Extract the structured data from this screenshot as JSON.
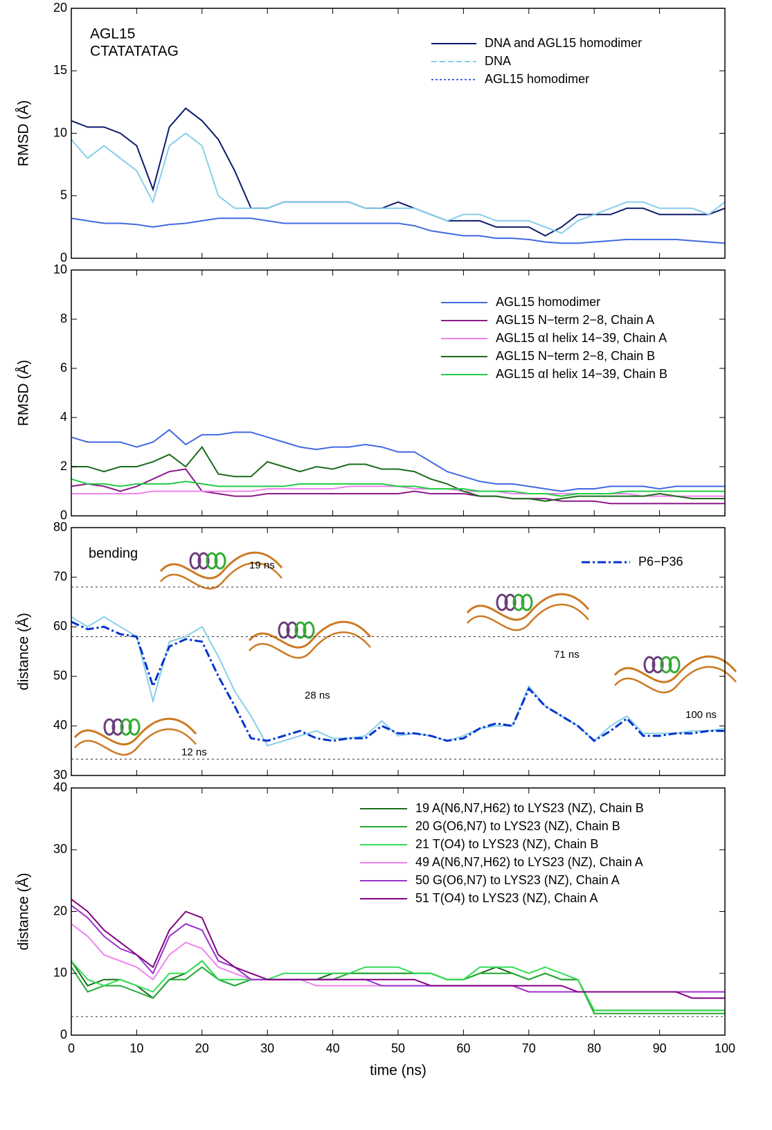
{
  "chart_data": [
    {
      "type": "line",
      "y_label": "RMSD (Å)",
      "annotations": [
        "AGL15",
        "CTATATATAG"
      ],
      "x": [
        0,
        2.5,
        5,
        7.5,
        10,
        12.5,
        15,
        17.5,
        20,
        22.5,
        25,
        27.5,
        30,
        32.5,
        35,
        37.5,
        40,
        42.5,
        45,
        47.5,
        50,
        52.5,
        55,
        57.5,
        60,
        62.5,
        65,
        67.5,
        70,
        72.5,
        75,
        77.5,
        80,
        82.5,
        85,
        87.5,
        90,
        92.5,
        95,
        97.5,
        100
      ],
      "xlim": [
        0,
        100
      ],
      "xticks": [
        0,
        10,
        20,
        30,
        40,
        50,
        60,
        70,
        80,
        90,
        100
      ],
      "show_xtick_labels": false,
      "ylim": [
        0,
        20
      ],
      "yticks": [
        0,
        5,
        10,
        15,
        20
      ],
      "legend": "upper right",
      "series": [
        {
          "name": "DNA and AGL15 homodimer",
          "color": "#0d1a6b",
          "values": [
            11,
            10.5,
            10.5,
            10,
            9,
            5.5,
            10.5,
            12,
            11,
            9.5,
            7,
            4,
            4,
            4.5,
            4.5,
            4.5,
            4.5,
            4.5,
            4,
            4,
            4.5,
            4,
            3.5,
            3,
            3,
            3,
            2.5,
            2.5,
            2.5,
            1.8,
            2.5,
            3.5,
            3.5,
            3.5,
            4,
            4,
            3.5,
            3.5,
            3.5,
            3.5,
            4
          ]
        },
        {
          "name": "DNA",
          "color": "#87ceeb",
          "values": [
            9.5,
            8,
            9,
            8,
            7,
            4.5,
            9,
            10,
            9,
            5,
            4,
            4,
            4,
            4.5,
            4.5,
            4.5,
            4.5,
            4.5,
            4,
            4,
            4,
            4,
            3.5,
            3,
            3.5,
            3.5,
            3,
            3,
            3,
            2.5,
            2,
            3,
            3.5,
            4,
            4.5,
            4.5,
            4,
            4,
            4,
            3.5,
            4.5
          ]
        },
        {
          "name": "AGL15 homodimer",
          "color": "#4169e1",
          "values": [
            3.2,
            3,
            2.8,
            2.8,
            2.7,
            2.5,
            2.7,
            2.8,
            3,
            3.2,
            3.2,
            3.2,
            3,
            2.8,
            2.8,
            2.8,
            2.8,
            2.8,
            2.8,
            2.8,
            2.8,
            2.6,
            2.2,
            2,
            1.8,
            1.8,
            1.6,
            1.6,
            1.5,
            1.3,
            1.2,
            1.2,
            1.3,
            1.4,
            1.5,
            1.5,
            1.5,
            1.5,
            1.4,
            1.3,
            1.2
          ]
        }
      ]
    },
    {
      "type": "line",
      "y_label": "RMSD (Å)",
      "x": [
        0,
        2.5,
        5,
        7.5,
        10,
        12.5,
        15,
        17.5,
        20,
        22.5,
        25,
        27.5,
        30,
        32.5,
        35,
        37.5,
        40,
        42.5,
        45,
        47.5,
        50,
        52.5,
        55,
        57.5,
        60,
        62.5,
        65,
        67.5,
        70,
        72.5,
        75,
        77.5,
        80,
        82.5,
        85,
        87.5,
        90,
        92.5,
        95,
        97.5,
        100
      ],
      "xlim": [
        0,
        100
      ],
      "xticks": [
        0,
        10,
        20,
        30,
        40,
        50,
        60,
        70,
        80,
        90,
        100
      ],
      "show_xtick_labels": false,
      "ylim": [
        0,
        10
      ],
      "yticks": [
        0,
        2,
        4,
        6,
        8,
        10
      ],
      "legend": "upper right",
      "series": [
        {
          "name": "AGL15 homodimer",
          "color": "#4169e1",
          "values": [
            3.2,
            3,
            3,
            3,
            2.8,
            3,
            3.5,
            2.9,
            3.3,
            3.3,
            3.4,
            3.4,
            3.2,
            3,
            2.8,
            2.7,
            2.8,
            2.8,
            2.9,
            2.8,
            2.6,
            2.6,
            2.2,
            1.8,
            1.6,
            1.4,
            1.3,
            1.3,
            1.2,
            1.1,
            1,
            1.1,
            1.1,
            1.2,
            1.2,
            1.2,
            1.1,
            1.2,
            1.2,
            1.2,
            1.2
          ]
        },
        {
          "name": "AGL15 N−term 2−8, Chain A",
          "color": "#8b1a89",
          "values": [
            1.2,
            1.3,
            1.2,
            1,
            1.2,
            1.5,
            1.8,
            1.9,
            1,
            0.9,
            0.8,
            0.8,
            0.9,
            0.9,
            0.9,
            0.9,
            0.9,
            0.9,
            0.9,
            0.9,
            0.9,
            1,
            0.9,
            0.9,
            0.9,
            0.8,
            0.8,
            0.7,
            0.7,
            0.7,
            0.6,
            0.6,
            0.6,
            0.5,
            0.5,
            0.5,
            0.5,
            0.5,
            0.5,
            0.5,
            0.5
          ]
        },
        {
          "name": "AGL15 αI helix 14−39, Chain A",
          "color": "#ee82ee",
          "values": [
            0.9,
            0.9,
            0.9,
            0.9,
            0.9,
            1,
            1,
            1,
            1,
            1,
            1,
            1,
            1.1,
            1.1,
            1.1,
            1.1,
            1.1,
            1.2,
            1.2,
            1.2,
            1.2,
            1.1,
            1.1,
            1.1,
            1,
            1,
            1,
            0.9,
            0.9,
            0.9,
            0.9,
            0.9,
            0.9,
            0.9,
            0.9,
            0.8,
            0.8,
            0.8,
            0.8,
            0.8,
            0.8
          ]
        },
        {
          "name": "AGL15 N−term 2−8, Chain B",
          "color": "#1a6b1a",
          "values": [
            2,
            2,
            1.8,
            2,
            2,
            2.2,
            2.5,
            2,
            2.8,
            1.7,
            1.6,
            1.6,
            2.2,
            2,
            1.8,
            2,
            1.9,
            2.1,
            2.1,
            1.9,
            1.9,
            1.8,
            1.5,
            1.3,
            1,
            0.8,
            0.8,
            0.7,
            0.7,
            0.6,
            0.7,
            0.8,
            0.8,
            0.8,
            0.8,
            0.8,
            0.9,
            0.8,
            0.7,
            0.7,
            0.7
          ]
        },
        {
          "name": "AGL15 αI helix 14−39, Chain B",
          "color": "#22cc44",
          "values": [
            1.5,
            1.3,
            1.3,
            1.2,
            1.3,
            1.3,
            1.3,
            1.4,
            1.3,
            1.2,
            1.2,
            1.2,
            1.2,
            1.2,
            1.3,
            1.3,
            1.3,
            1.3,
            1.3,
            1.3,
            1.2,
            1.2,
            1.1,
            1.1,
            1.1,
            1,
            1,
            1,
            0.9,
            0.9,
            0.8,
            0.9,
            0.9,
            0.9,
            1,
            1,
            1,
            1,
            1,
            1,
            1
          ]
        }
      ]
    },
    {
      "type": "line",
      "y_label": "distance (Å)",
      "annotations": [
        "bending",
        "19 ns",
        "28 ns",
        "71 ns",
        "100 ns",
        "12 ns"
      ],
      "x": [
        0,
        2.5,
        5,
        7.5,
        10,
        12.5,
        15,
        17.5,
        20,
        22.5,
        25,
        27.5,
        30,
        32.5,
        35,
        37.5,
        40,
        42.5,
        45,
        47.5,
        50,
        52.5,
        55,
        57.5,
        60,
        62.5,
        65,
        67.5,
        70,
        72.5,
        75,
        77.5,
        80,
        82.5,
        85,
        87.5,
        90,
        92.5,
        95,
        97.5,
        100
      ],
      "xlim": [
        0,
        100
      ],
      "xticks": [
        0,
        10,
        20,
        30,
        40,
        50,
        60,
        70,
        80,
        90,
        100
      ],
      "show_xtick_labels": false,
      "ylim": [
        30,
        80
      ],
      "yticks": [
        30,
        40,
        50,
        60,
        70,
        80
      ],
      "hlines": [
        68,
        58,
        33.3
      ],
      "legend": "upper right",
      "series": [
        {
          "color": "#87ceeb",
          "values": [
            62,
            60,
            62,
            60,
            58,
            45,
            57,
            58,
            60,
            54,
            47,
            42,
            36,
            37,
            38,
            39,
            37.5,
            37.5,
            38,
            41,
            38,
            38.5,
            38,
            37,
            38,
            39.5,
            40,
            40,
            48,
            44,
            42,
            40,
            37,
            40,
            42,
            38.5,
            38.5,
            38.5,
            39,
            39,
            39.5
          ]
        },
        {
          "name": "P6−P36",
          "color": "#0033cc",
          "values": [
            61,
            59.5,
            60,
            58.5,
            58,
            48,
            56,
            57.5,
            57,
            50,
            44,
            37.5,
            37,
            38,
            39,
            37.5,
            37,
            37.5,
            37.5,
            40,
            38.5,
            38.5,
            38,
            37,
            37.5,
            39.5,
            40.5,
            40,
            47.5,
            44,
            42,
            40,
            37,
            39,
            41.5,
            38,
            38,
            38.5,
            38.5,
            39,
            39
          ]
        }
      ]
    },
    {
      "type": "line",
      "y_label": "distance (Å)",
      "x_label": "time (ns)",
      "x": [
        0,
        2.5,
        5,
        7.5,
        10,
        12.5,
        15,
        17.5,
        20,
        22.5,
        25,
        27.5,
        30,
        32.5,
        35,
        37.5,
        40,
        42.5,
        45,
        47.5,
        50,
        52.5,
        55,
        57.5,
        60,
        62.5,
        65,
        67.5,
        70,
        72.5,
        75,
        77.5,
        80,
        82.5,
        85,
        87.5,
        90,
        92.5,
        95,
        97.5,
        100
      ],
      "xlim": [
        0,
        100
      ],
      "xticks": [
        0,
        10,
        20,
        30,
        40,
        50,
        60,
        70,
        80,
        90,
        100
      ],
      "show_xtick_labels": true,
      "ylim": [
        0,
        40
      ],
      "yticks": [
        0,
        10,
        20,
        30,
        40
      ],
      "hlines": [
        3
      ],
      "legend": "upper right",
      "series": [
        {
          "name": "19 A(N6,N7,H62) to LYS23 (NZ), Chain B",
          "color": "#1a6b1a",
          "values": [
            12,
            8,
            9,
            9,
            8,
            6,
            9,
            10,
            12,
            9,
            8,
            9,
            9,
            9,
            9,
            9,
            10,
            10,
            10,
            10,
            10,
            10,
            10,
            9,
            9,
            10,
            11,
            10,
            9,
            10,
            9,
            9,
            4,
            4,
            4,
            4,
            4,
            4,
            4,
            4,
            4
          ]
        },
        {
          "name": "20 G(O6,N7) to LYS23 (NZ), Chain B",
          "color": "#22aa33",
          "values": [
            11,
            7,
            8,
            8,
            7,
            6,
            9,
            9,
            11,
            9,
            8,
            9,
            9,
            9,
            9,
            9,
            9,
            10,
            10,
            10,
            10,
            10,
            10,
            9,
            9,
            10,
            10,
            10,
            9,
            10,
            9,
            9,
            3.5,
            3.5,
            3.5,
            3.5,
            3.5,
            3.5,
            3.5,
            3.5,
            3.5
          ]
        },
        {
          "name": "21 T(O4) to LYS23 (NZ), Chain B",
          "color": "#33dd55",
          "values": [
            12,
            9,
            8,
            9,
            8,
            7,
            10,
            10,
            12,
            9,
            9,
            9,
            9,
            10,
            10,
            10,
            10,
            10,
            11,
            11,
            11,
            10,
            10,
            9,
            9,
            11,
            11,
            11,
            10,
            11,
            10,
            9,
            4,
            4,
            4,
            4,
            4,
            4,
            4,
            4,
            4
          ]
        },
        {
          "name": "49 A(N6,N7,H62) to LYS23 (NZ), Chain A",
          "color": "#ee82ee",
          "values": [
            18,
            16,
            13,
            12,
            11,
            9,
            13,
            15,
            14,
            11,
            10,
            9,
            9,
            9,
            9,
            8,
            8,
            8,
            8,
            8,
            8,
            8,
            8,
            8,
            8,
            8,
            8,
            8,
            7,
            7,
            7,
            7,
            7,
            7,
            7,
            7,
            7,
            7,
            6,
            6,
            6
          ]
        },
        {
          "name": "50 G(O6,N7) to LYS23 (NZ), Chain A",
          "color": "#9932cc",
          "values": [
            21,
            19,
            16,
            14,
            13,
            10,
            16,
            18,
            17,
            12,
            11,
            9,
            9,
            9,
            9,
            9,
            9,
            9,
            9,
            8,
            8,
            8,
            8,
            8,
            8,
            8,
            8,
            8,
            7,
            7,
            7,
            7,
            7,
            7,
            7,
            7,
            7,
            7,
            7,
            7,
            7
          ]
        },
        {
          "name": "51 T(O4) to LYS23 (NZ), Chain A",
          "color": "#800080",
          "values": [
            22,
            20,
            17,
            15,
            13,
            11,
            17,
            20,
            19,
            13,
            11,
            10,
            9,
            9,
            9,
            9,
            9,
            9,
            9,
            9,
            9,
            9,
            8,
            8,
            8,
            8,
            8,
            8,
            8,
            8,
            8,
            7,
            7,
            7,
            7,
            7,
            7,
            7,
            6,
            6,
            6
          ]
        }
      ]
    }
  ]
}
